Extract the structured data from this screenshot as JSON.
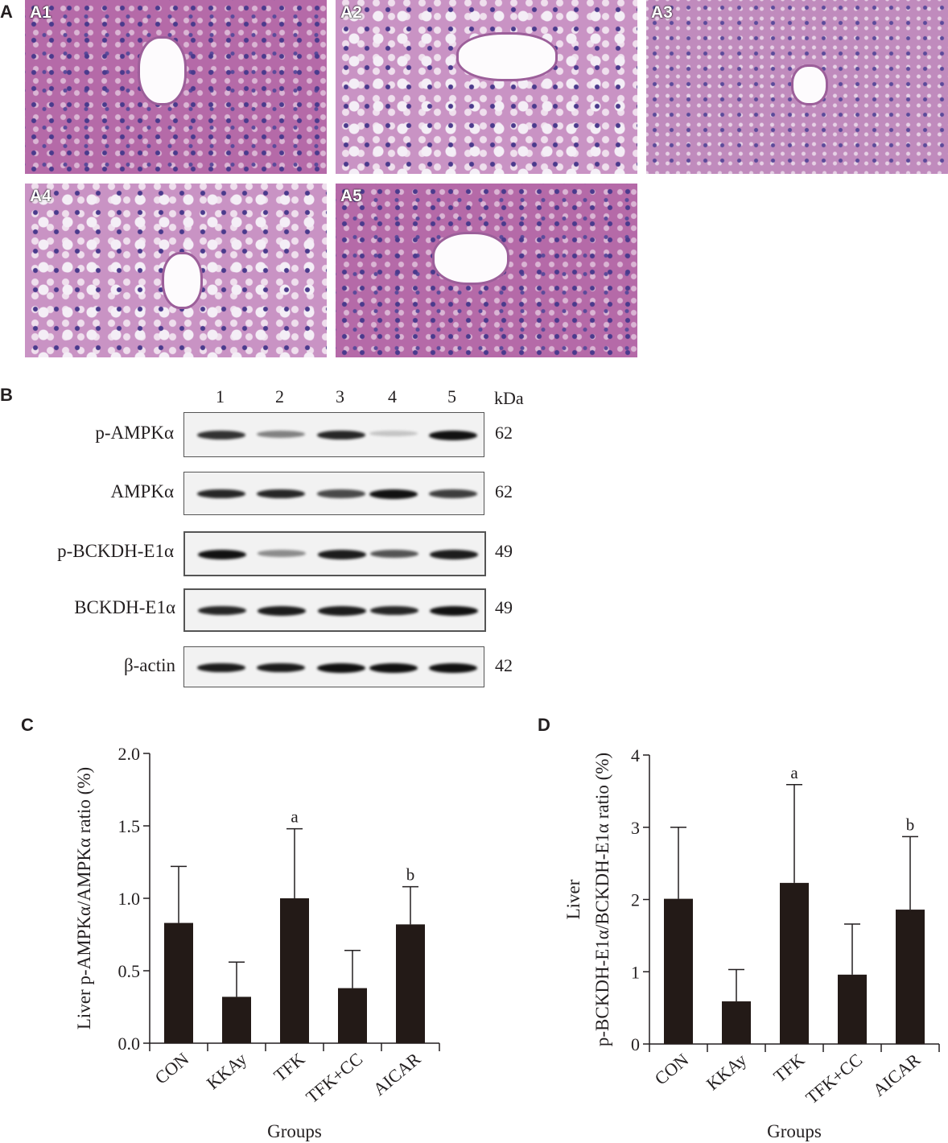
{
  "panel_labels": {
    "A": "A",
    "B": "B",
    "C": "C",
    "D": "D"
  },
  "histology": [
    {
      "label": "A1",
      "style": "normal"
    },
    {
      "label": "A2",
      "style": "fatty"
    },
    {
      "label": "A3",
      "style": "light"
    },
    {
      "label": "A4",
      "style": "fatty"
    },
    {
      "label": "A5",
      "style": "normal"
    }
  ],
  "blot": {
    "lanes": [
      "1",
      "2",
      "3",
      "4",
      "5"
    ],
    "unit": "kDa",
    "rows": [
      {
        "label": "p-AMPKα",
        "kda": "62",
        "intensity": [
          0.85,
          0.5,
          0.9,
          0.2,
          1.0
        ]
      },
      {
        "label": "AMPKα",
        "kda": "62",
        "intensity": [
          0.9,
          0.9,
          0.75,
          1.0,
          0.8
        ]
      },
      {
        "label": "p-BCKDH-E1α",
        "kda": "49",
        "intensity": [
          1.0,
          0.45,
          0.95,
          0.7,
          0.95
        ]
      },
      {
        "label": "BCKDH-E1α",
        "kda": "49",
        "intensity": [
          0.9,
          0.95,
          0.95,
          0.9,
          1.0
        ]
      },
      {
        "label": "β-actin",
        "kda": "42",
        "intensity": [
          0.95,
          0.95,
          1.0,
          1.0,
          1.0
        ]
      }
    ]
  },
  "chart_data": [
    {
      "type": "bar",
      "panel": "C",
      "categories": [
        "CON",
        "KKAy",
        "TFK",
        "TFK+CC",
        "AICAR"
      ],
      "values": [
        0.83,
        0.32,
        1.0,
        0.38,
        0.82
      ],
      "error_upper": [
        1.22,
        0.56,
        1.48,
        0.64,
        1.08
      ],
      "annotations": [
        "",
        "",
        "a",
        "",
        "b"
      ],
      "xlabel": "Groups",
      "ylabel": "Liver p-AMPKα/AMPKα ratio (%)",
      "ylim": [
        0,
        2.0
      ],
      "yticks": [
        "0.0",
        "0.5",
        "1.0",
        "1.5",
        "2.0"
      ],
      "bar_color": "#231a17",
      "grid": false
    },
    {
      "type": "bar",
      "panel": "D",
      "categories": [
        "CON",
        "KKAy",
        "TFK",
        "TFK+CC",
        "AICAR"
      ],
      "values": [
        2.01,
        0.59,
        2.23,
        0.96,
        1.86
      ],
      "error_upper": [
        3.0,
        1.03,
        3.59,
        1.66,
        2.87
      ],
      "annotations": [
        "",
        "",
        "a",
        "",
        "b"
      ],
      "xlabel": "Groups",
      "ylabel": [
        "Liver",
        "p-BCKDH-E1α/BCKDH-E1α ratio (%)"
      ],
      "ylim": [
        0,
        4
      ],
      "yticks": [
        "0",
        "1",
        "2",
        "3",
        "4"
      ],
      "bar_color": "#231a17",
      "grid": false
    }
  ]
}
